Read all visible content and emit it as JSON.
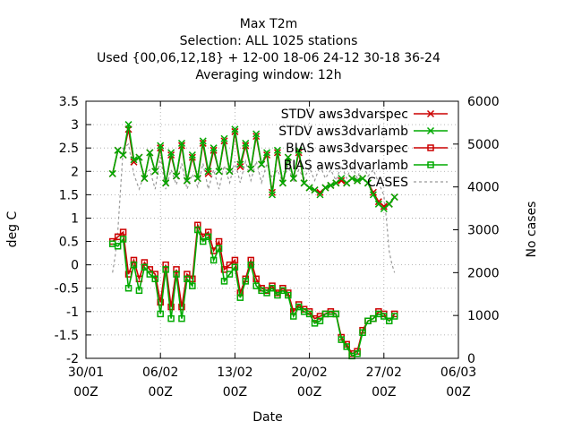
{
  "chart_data": {
    "type": "line",
    "title_lines": [
      "Max T2m",
      "Selection: ALL   1025 stations",
      "Used {00,06,12,18} + 12-00 18-06 24-12 30-18 36-24",
      "Averaging window: 12h"
    ],
    "xlabel": "Date",
    "ylabel": "deg C",
    "y2label": "No cases",
    "xlim": [
      0,
      34
    ],
    "ylim": [
      -2,
      3.5
    ],
    "y2lim": [
      0,
      6000
    ],
    "x_ticks": [
      {
        "x": 0,
        "line1": "30/01",
        "line2": "00Z"
      },
      {
        "x": 7,
        "line1": "06/02",
        "line2": "00Z"
      },
      {
        "x": 14,
        "line1": "13/02",
        "line2": "00Z"
      },
      {
        "x": 21,
        "line1": "20/02",
        "line2": "00Z"
      },
      {
        "x": 28,
        "line1": "27/02",
        "line2": "00Z"
      },
      {
        "x": 35,
        "line1": "06/03",
        "line2": "00Z"
      }
    ],
    "y_ticks": [
      "3.5",
      "3",
      "2.5",
      "2",
      "1.5",
      "1",
      "0.5",
      "0",
      "-0.5",
      "-1",
      "-1.5",
      "-2"
    ],
    "y2_ticks": [
      "6000",
      "5000",
      "4000",
      "3000",
      "2000",
      "1000",
      "0"
    ],
    "grid": true,
    "legend_position": "top-right",
    "colors": {
      "red": "#cc0000",
      "green": "#00aa00",
      "gray": "#999999"
    },
    "series": [
      {
        "name": "STDV aws3dvarspec",
        "color": "#cc0000",
        "marker": "x",
        "axis": "y",
        "x": [
          2.5,
          3.0,
          3.5,
          4.0,
          4.5,
          5.0,
          5.5,
          6.0,
          6.5,
          7.0,
          7.5,
          8.0,
          8.5,
          9.0,
          9.5,
          10.0,
          10.5,
          11.0,
          11.5,
          12.0,
          12.5,
          13.0,
          13.5,
          14.0,
          14.5,
          15.0,
          15.5,
          16.0,
          16.5,
          17.0,
          17.5,
          18.0,
          18.5,
          19.0,
          19.5,
          20.0,
          20.5,
          21.0,
          21.5,
          22.0,
          22.5,
          23.0,
          23.5,
          24.0,
          24.5,
          25.0,
          25.5,
          26.0,
          26.5,
          27.0,
          27.5,
          28.0,
          28.5,
          29.0
        ],
        "y": [
          1.95,
          2.45,
          2.35,
          2.9,
          2.2,
          2.3,
          1.85,
          2.4,
          2.0,
          2.5,
          1.75,
          2.35,
          1.9,
          2.55,
          1.8,
          2.3,
          1.85,
          2.6,
          1.95,
          2.45,
          2.0,
          2.65,
          2.0,
          2.85,
          2.1,
          2.55,
          2.05,
          2.75,
          2.15,
          2.35,
          1.55,
          2.4,
          1.75,
          2.3,
          1.85,
          2.4,
          1.75,
          1.65,
          1.6,
          1.55,
          1.65,
          1.7,
          1.75,
          1.8,
          1.75,
          1.85,
          1.8,
          1.85,
          1.75,
          1.55,
          1.35,
          1.25,
          1.3,
          1.45
        ]
      },
      {
        "name": "STDV aws3dvarlamb",
        "color": "#00aa00",
        "marker": "x",
        "axis": "y",
        "x": [
          2.5,
          3.0,
          3.5,
          4.0,
          4.5,
          5.0,
          5.5,
          6.0,
          6.5,
          7.0,
          7.5,
          8.0,
          8.5,
          9.0,
          9.5,
          10.0,
          10.5,
          11.0,
          11.5,
          12.0,
          12.5,
          13.0,
          13.5,
          14.0,
          14.5,
          15.0,
          15.5,
          16.0,
          16.5,
          17.0,
          17.5,
          18.0,
          18.5,
          19.0,
          19.5,
          20.0,
          20.5,
          21.0,
          21.5,
          22.0,
          22.5,
          23.0,
          23.5,
          24.0,
          24.5,
          25.0,
          25.5,
          26.0,
          26.5,
          27.0,
          27.5,
          28.0,
          28.5,
          29.0
        ],
        "y": [
          1.95,
          2.45,
          2.35,
          3.0,
          2.25,
          2.3,
          1.85,
          2.4,
          2.0,
          2.55,
          1.75,
          2.4,
          1.9,
          2.6,
          1.8,
          2.35,
          1.85,
          2.65,
          2.0,
          2.5,
          2.0,
          2.7,
          2.0,
          2.9,
          2.15,
          2.6,
          2.05,
          2.8,
          2.15,
          2.4,
          1.5,
          2.45,
          1.75,
          2.3,
          1.85,
          2.45,
          1.75,
          1.65,
          1.6,
          1.5,
          1.65,
          1.7,
          1.75,
          1.85,
          1.75,
          1.85,
          1.8,
          1.85,
          1.75,
          1.5,
          1.3,
          1.2,
          1.3,
          1.45
        ]
      },
      {
        "name": "BIAS aws3dvarspec",
        "color": "#cc0000",
        "marker": "square",
        "axis": "y",
        "x": [
          2.5,
          3.0,
          3.5,
          4.0,
          4.5,
          5.0,
          5.5,
          6.0,
          6.5,
          7.0,
          7.5,
          8.0,
          8.5,
          9.0,
          9.5,
          10.0,
          10.5,
          11.0,
          11.5,
          12.0,
          12.5,
          13.0,
          13.5,
          14.0,
          14.5,
          15.0,
          15.5,
          16.0,
          16.5,
          17.0,
          17.5,
          18.0,
          18.5,
          19.0,
          19.5,
          20.0,
          20.5,
          21.0,
          21.5,
          22.0,
          22.5,
          23.0,
          23.5,
          24.0,
          24.5,
          25.0,
          25.5,
          26.0,
          26.5,
          27.0,
          27.5,
          28.0,
          28.5,
          29.0
        ],
        "y": [
          0.5,
          0.6,
          0.7,
          -0.2,
          0.1,
          -0.3,
          0.05,
          -0.1,
          -0.2,
          -0.8,
          0.0,
          -0.9,
          -0.1,
          -0.9,
          -0.2,
          -0.3,
          0.85,
          0.6,
          0.7,
          0.3,
          0.5,
          -0.1,
          0.0,
          0.1,
          -0.6,
          -0.3,
          0.1,
          -0.3,
          -0.5,
          -0.55,
          -0.45,
          -0.6,
          -0.5,
          -0.6,
          -1.0,
          -0.85,
          -0.95,
          -1.0,
          -1.15,
          -1.1,
          -1.05,
          -1.0,
          -1.05,
          -1.55,
          -1.7,
          -1.9,
          -1.85,
          -1.4,
          -1.2,
          -1.15,
          -1.0,
          -1.05,
          -1.2,
          -1.05
        ]
      },
      {
        "name": "BIAS aws3dvarlamb",
        "color": "#00aa00",
        "marker": "square",
        "axis": "y",
        "x": [
          2.5,
          3.0,
          3.5,
          4.0,
          4.5,
          5.0,
          5.5,
          6.0,
          6.5,
          7.0,
          7.5,
          8.0,
          8.5,
          9.0,
          9.5,
          10.0,
          10.5,
          11.0,
          11.5,
          12.0,
          12.5,
          13.0,
          13.5,
          14.0,
          14.5,
          15.0,
          15.5,
          16.0,
          16.5,
          17.0,
          17.5,
          18.0,
          18.5,
          19.0,
          19.5,
          20.0,
          20.5,
          21.0,
          21.5,
          22.0,
          22.5,
          23.0,
          23.5,
          24.0,
          24.5,
          25.0,
          25.5,
          26.0,
          26.5,
          27.0,
          27.5,
          28.0,
          28.5,
          29.0
        ],
        "y": [
          0.45,
          0.4,
          0.55,
          -0.5,
          0.0,
          -0.55,
          -0.05,
          -0.2,
          -0.3,
          -1.05,
          -0.1,
          -1.15,
          -0.2,
          -1.15,
          -0.3,
          -0.45,
          0.75,
          0.5,
          0.6,
          0.1,
          0.35,
          -0.35,
          -0.2,
          -0.05,
          -0.7,
          -0.35,
          0.0,
          -0.45,
          -0.55,
          -0.6,
          -0.5,
          -0.65,
          -0.55,
          -0.65,
          -1.1,
          -0.9,
          -1.0,
          -1.05,
          -1.25,
          -1.2,
          -1.05,
          -1.05,
          -1.05,
          -1.6,
          -1.75,
          -1.95,
          -1.9,
          -1.45,
          -1.2,
          -1.15,
          -1.05,
          -1.1,
          -1.2,
          -1.1
        ]
      },
      {
        "name": "CASES",
        "color": "#999999",
        "dash": true,
        "axis": "y2",
        "x": [
          2.5,
          2.75,
          3.0,
          3.5,
          4.0,
          4.5,
          5.0,
          5.5,
          6.0,
          6.5,
          7.0,
          7.5,
          8.0,
          8.5,
          9.0,
          9.5,
          10.0,
          10.5,
          11.0,
          11.5,
          12.0,
          12.5,
          13.0,
          13.5,
          14.0,
          14.5,
          15.0,
          15.5,
          16.0,
          16.5,
          17.0,
          17.5,
          18.0,
          18.5,
          19.0,
          19.5,
          20.0,
          20.5,
          21.0,
          21.5,
          22.0,
          22.5,
          23.0,
          23.5,
          24.0,
          24.5,
          25.0,
          25.5,
          26.0,
          26.5,
          27.0,
          27.5,
          28.0,
          28.25,
          28.5,
          28.75,
          29.0
        ],
        "y": [
          2000,
          2400,
          3000,
          4900,
          5000,
          4300,
          3950,
          4300,
          4400,
          3950,
          4700,
          3950,
          4400,
          4050,
          4550,
          3950,
          4300,
          4000,
          4550,
          3950,
          4400,
          3950,
          4500,
          4100,
          4600,
          4100,
          4600,
          4150,
          4600,
          4100,
          4550,
          4200,
          4400,
          4100,
          4500,
          4100,
          4400,
          4200,
          4450,
          4150,
          4500,
          4200,
          4400,
          4150,
          4500,
          4200,
          4500,
          4200,
          4550,
          4250,
          4400,
          4100,
          3800,
          3200,
          2500,
          2200,
          2000
        ]
      }
    ]
  }
}
